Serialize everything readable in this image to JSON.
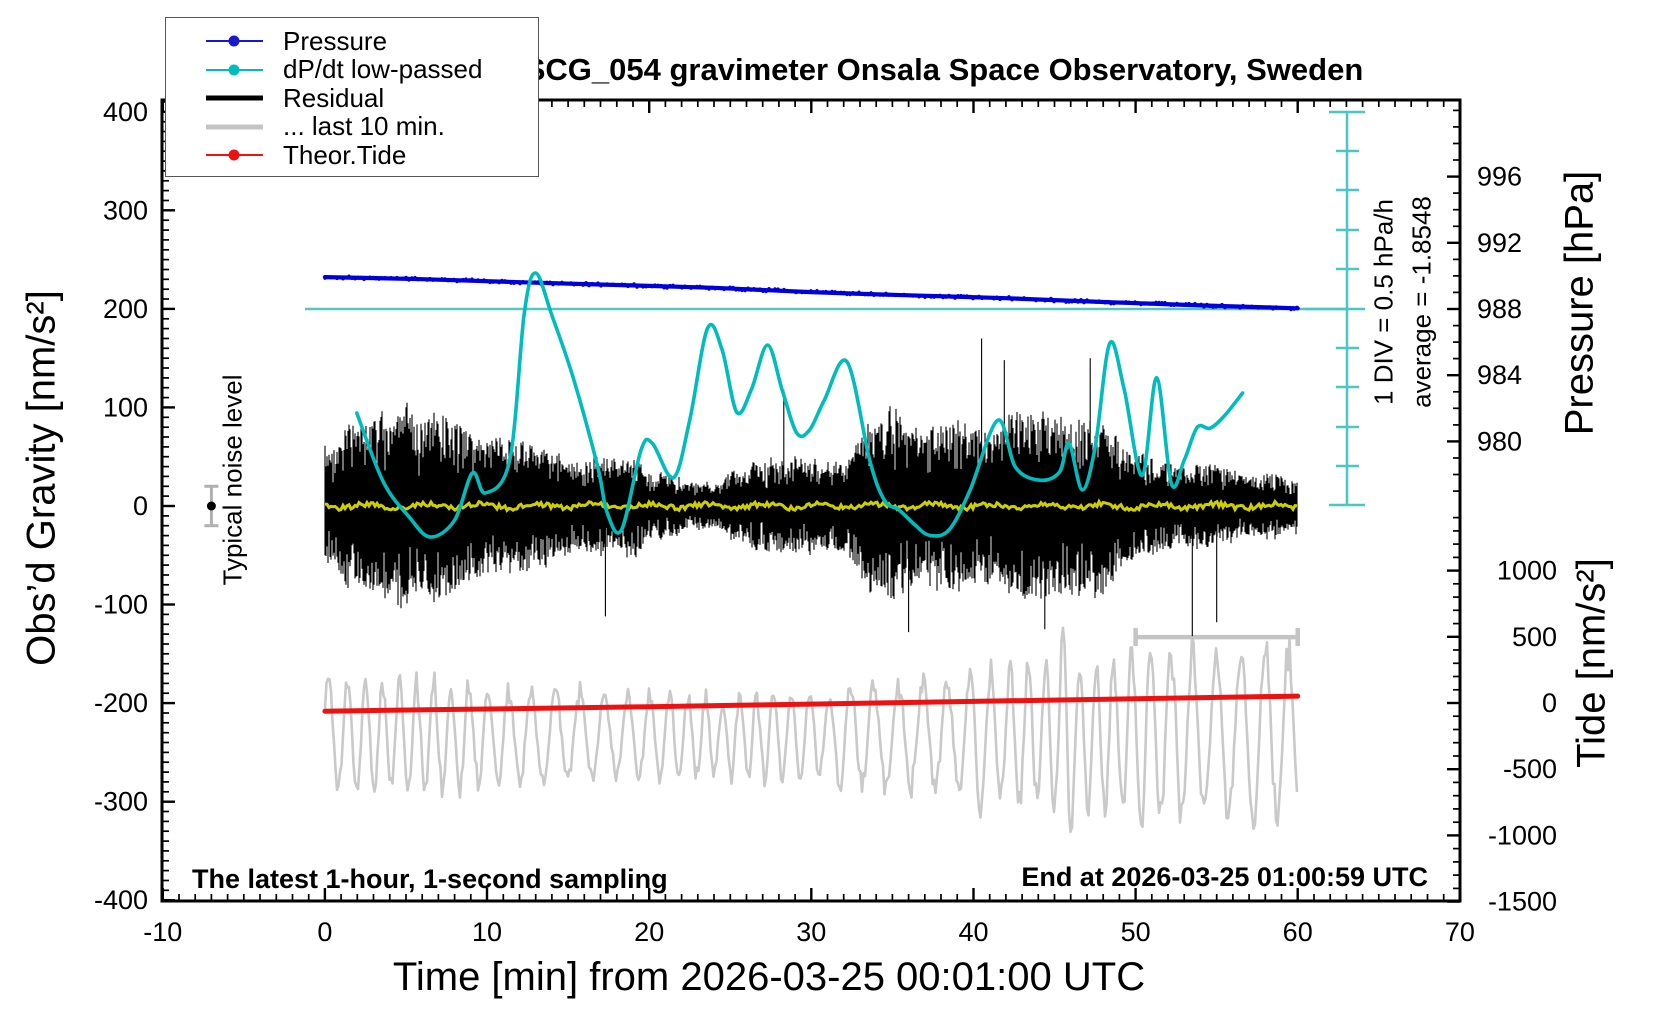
{
  "title": "SCG_054 gravimeter Onsala Space Observatory, Sweden",
  "axes": {
    "x_title": "Time [min] from 2026-03-25 00:01:00 UTC",
    "gravity_title": "Obs’d Gravity [nm/s²]",
    "pressure_title": "Pressure [hPa]",
    "tide_title": "Tide [nm/s²]"
  },
  "annotations": {
    "noise_label": "Typical noise level",
    "div_label": "1 DIV = 0.5 hPa/h",
    "avg_label": "average = -1.8548",
    "bottom_left": "The latest 1-hour, 1-second sampling",
    "bottom_right": "End at 2026-03-25 01:00:59 UTC"
  },
  "legend": {
    "items": [
      {
        "label": "Pressure",
        "color": "#1818cf",
        "marker": "dot",
        "weight": "thin"
      },
      {
        "label": "dP/dt low-passed",
        "color": "#00bdbd",
        "marker": "dot",
        "weight": "thin"
      },
      {
        "label": "Residual",
        "color": "#000000",
        "marker": "none",
        "weight": "thick"
      },
      {
        "label": "... last 10 min.",
        "color": "#c4c4c4",
        "marker": "none",
        "weight": "thick"
      },
      {
        "label": "Theor.Tide",
        "color": "#ee1111",
        "marker": "dot",
        "weight": "thin"
      }
    ]
  },
  "chart_data": {
    "type": "line",
    "title": "SCG_054 gravimeter Onsala Space Observatory, Sweden",
    "x_axis": {
      "label": "Time [min] from 2026-03-25 00:01:00 UTC",
      "range": [
        -10,
        70
      ],
      "ticks": [
        -10,
        0,
        10,
        20,
        30,
        40,
        50,
        60,
        70
      ],
      "minor_tick_step": 1
    },
    "left_axis": {
      "label": "Obs'd Gravity [nm/s²]",
      "range": [
        -400,
        400
      ],
      "ticks": [
        -400,
        -300,
        -200,
        -100,
        0,
        100,
        200,
        300,
        400
      ],
      "minor_tick_step": 10
    },
    "right_axis_pressure": {
      "label": "Pressure [hPa]",
      "ticks": [
        996,
        992,
        988,
        984,
        980
      ],
      "minor_tick_step": 1
    },
    "right_axis_tide": {
      "label": "Tide [nm/s²]",
      "ticks": [
        1000,
        500,
        0,
        -500,
        -1000,
        -1500
      ],
      "minor_tick_step": 100
    },
    "series": [
      {
        "name": "Pressure",
        "unit": "hPa",
        "color": "#0000dd",
        "points": [
          [
            0,
            989.93
          ],
          [
            6,
            989.8
          ],
          [
            12,
            989.62
          ],
          [
            18,
            989.45
          ],
          [
            24,
            989.28
          ],
          [
            30,
            989.02
          ],
          [
            36,
            988.83
          ],
          [
            42,
            988.65
          ],
          [
            48,
            988.42
          ],
          [
            54,
            988.22
          ],
          [
            60,
            988.04
          ]
        ]
      },
      {
        "name": "dP/dt low-passed",
        "unit": "hPa/h",
        "color": "#00bdbd",
        "scale_note": "1 DIV = 0.5 hPa/h",
        "average_hPa_per_h": -1.8548,
        "zero_at_pressure_hPa": 988,
        "points": [
          [
            1.97,
            -1.3
          ],
          [
            3.6,
            -2.16
          ],
          [
            5.2,
            -2.6
          ],
          [
            6.5,
            -2.85
          ],
          [
            8.0,
            -2.64
          ],
          [
            9.1,
            -2.05
          ],
          [
            9.9,
            -2.3
          ],
          [
            11.4,
            -1.89
          ],
          [
            12.3,
            -0.05
          ],
          [
            13.0,
            0.45
          ],
          [
            14.0,
            -0.08
          ],
          [
            15.3,
            -0.85
          ],
          [
            16.8,
            -1.95
          ],
          [
            17.4,
            -2.54
          ],
          [
            18.3,
            -2.76
          ],
          [
            19.5,
            -1.76
          ],
          [
            20.2,
            -1.68
          ],
          [
            21.5,
            -2.11
          ],
          [
            22.5,
            -1.39
          ],
          [
            23.6,
            -0.24
          ],
          [
            24.5,
            -0.51
          ],
          [
            25.4,
            -1.29
          ],
          [
            26.3,
            -1.01
          ],
          [
            27.3,
            -0.45
          ],
          [
            28.2,
            -1.01
          ],
          [
            29.1,
            -1.55
          ],
          [
            29.9,
            -1.51
          ],
          [
            30.8,
            -1.14
          ],
          [
            32.2,
            -0.66
          ],
          [
            33.6,
            -1.89
          ],
          [
            34.5,
            -2.39
          ],
          [
            35.4,
            -2.51
          ],
          [
            36.4,
            -2.7
          ],
          [
            37.3,
            -2.83
          ],
          [
            38.5,
            -2.76
          ],
          [
            39.8,
            -2.26
          ],
          [
            41.5,
            -1.39
          ],
          [
            42.6,
            -1.98
          ],
          [
            44.1,
            -2.14
          ],
          [
            45.3,
            -2.04
          ],
          [
            45.9,
            -1.68
          ],
          [
            46.7,
            -2.26
          ],
          [
            47.5,
            -1.73
          ],
          [
            48.4,
            -0.43
          ],
          [
            49.3,
            -1.01
          ],
          [
            50.4,
            -2.08
          ],
          [
            51.3,
            -0.86
          ],
          [
            52.2,
            -2.18
          ],
          [
            53.0,
            -1.89
          ],
          [
            53.8,
            -1.48
          ],
          [
            54.6,
            -1.49
          ],
          [
            55.5,
            -1.33
          ],
          [
            56.6,
            -1.05
          ]
        ]
      },
      {
        "name": "Residual",
        "unit": "nm/s2",
        "color": "#000000",
        "time_range_min": [
          0,
          60
        ],
        "sampling": "1 s",
        "stochastic": {
          "mean": 0,
          "typical_amplitude": 55,
          "spikes": [
            [
              17.3,
              -112
            ],
            [
              28.3,
              118
            ],
            [
              36.0,
              -128
            ],
            [
              40.5,
              170
            ],
            [
              41.9,
              148
            ],
            [
              44.4,
              -125
            ],
            [
              47.2,
              150
            ],
            [
              53.5,
              -132
            ],
            [
              55.0,
              -118
            ]
          ]
        }
      },
      {
        "name": "... last 10 min.",
        "unit": "nm/s2",
        "color": "#c9c9c9",
        "display_center": -233,
        "oscillation_amplitude_range": [
          45,
          85
        ],
        "excursions": [
          [
            40.2,
            -320
          ],
          [
            45.7,
            -352
          ],
          [
            50.6,
            -338
          ]
        ],
        "extent_bar": {
          "from_min": 50,
          "to_min": 60,
          "at_value": -133
        }
      },
      {
        "name": "Theor.Tide",
        "unit": "nm/s2 (tide axis)",
        "color": "#ee1111",
        "points": [
          [
            0,
            -62
          ],
          [
            10,
            -45
          ],
          [
            20,
            -28
          ],
          [
            30,
            -8
          ],
          [
            40,
            12
          ],
          [
            50,
            32
          ],
          [
            60,
            52
          ]
        ]
      }
    ],
    "noise_marker": {
      "label": "Typical noise level",
      "t_min": -7,
      "value": 0,
      "error": 20
    },
    "colors": {
      "pressure": "#0000dd",
      "dpdt": "#00bdbd",
      "dpdt_zero_line": "#58c5c5",
      "residual": "#000000",
      "residual_lowpass": "#cfcf00",
      "last10": "#c9c9c9",
      "extent_bar": "#c4c4c4",
      "tide": "#ee1111",
      "noise_bar": "#b0b0b0",
      "frame": "#000000"
    }
  }
}
